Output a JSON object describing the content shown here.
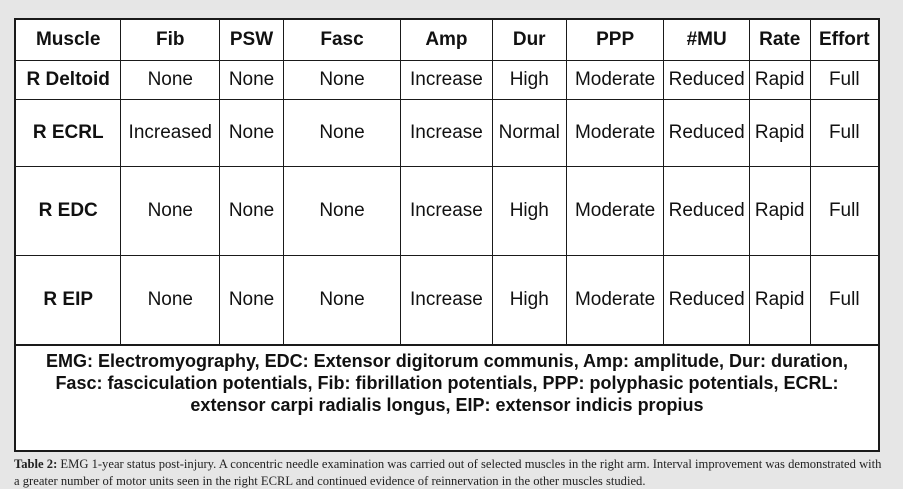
{
  "table": {
    "columns": [
      "Muscle",
      "Fib",
      "PSW",
      "Fasc",
      "Amp",
      "Dur",
      "PPP",
      "#MU",
      "Rate",
      "Effort"
    ],
    "rows": [
      [
        "R Deltoid",
        "None",
        "None",
        "None",
        "Increase",
        "High",
        "Moderate",
        "Reduced",
        "Rapid",
        "Full"
      ],
      [
        "R ECRL",
        "Increased",
        "None",
        "None",
        "Increase",
        "Normal",
        "Moderate",
        "Reduced",
        "Rapid",
        "Full"
      ],
      [
        "R EDC",
        "None",
        "None",
        "None",
        "Increase",
        "High",
        "Moderate",
        "Reduced",
        "Rapid",
        "Full"
      ],
      [
        "R EIP",
        "None",
        "None",
        "None",
        "Increase",
        "High",
        "Moderate",
        "Reduced",
        "Rapid",
        "Full"
      ]
    ],
    "abbreviations": [
      "EMG: Electromyography, EDC: Extensor digitorum communis, Amp: amplitude, Dur: duration,",
      "Fasc: fasciculation potentials, Fib: fibrillation potentials, PPP:  polyphasic potentials, ECRL:",
      "extensor carpi radialis longus, EIP: extensor indicis propius"
    ]
  },
  "caption": {
    "label": "Table 2:",
    "text": " EMG 1-year status post-injury. A concentric needle examination was carried out of selected muscles in the right arm. Interval improvement was demonstrated with a greater number of motor units seen in the right ECRL and continued evidence of reinnervation in the other muscles studied."
  }
}
